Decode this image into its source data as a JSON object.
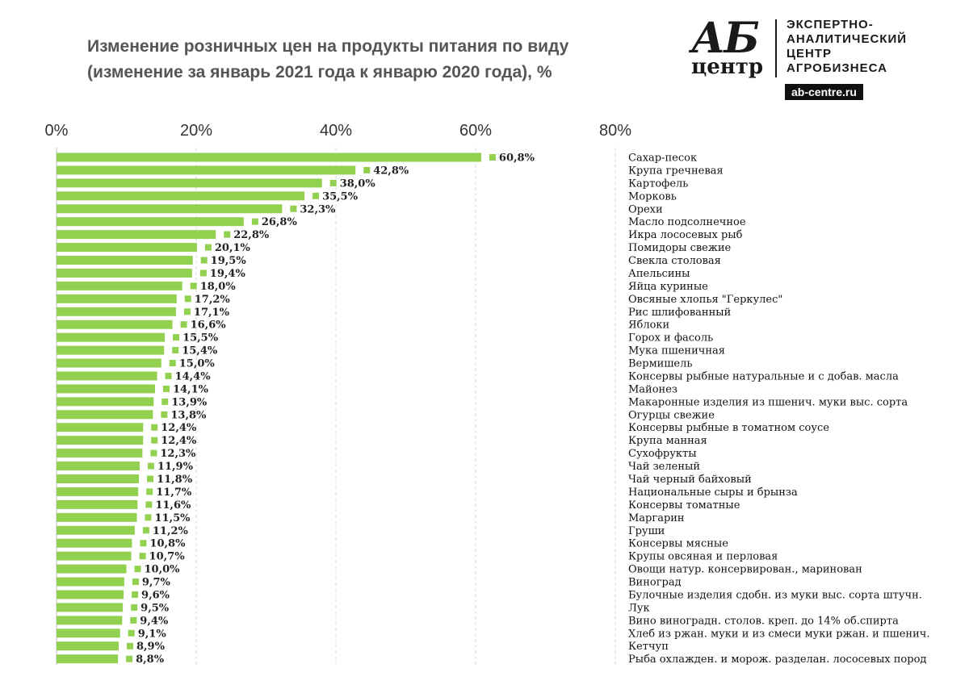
{
  "title": {
    "line1": "Изменение розничных цен на продукты питания по виду",
    "line2": "(изменение за январь 2021 года к январю 2020 года), %"
  },
  "logo": {
    "mark_ab": "АБ",
    "mark_centr": "центр",
    "text_lines": [
      "ЭКСПЕРТНО-",
      "АНАЛИТИЧЕСКИЙ",
      "ЦЕНТР",
      "АГРОБИЗНЕСА"
    ],
    "site": "ab-centre.ru"
  },
  "colors": {
    "bar": "#92d050",
    "grid": "#d9d9d9",
    "axis": "#bfbfbf"
  },
  "chart_data": {
    "type": "bar",
    "orientation": "horizontal",
    "title": "Изменение розничных цен на продукты питания по виду (изменение за январь 2021 года к январю 2020 года), %",
    "xlabel": "",
    "ylabel": "",
    "xlim": [
      0,
      80
    ],
    "xticks": [
      0,
      20,
      40,
      60,
      80
    ],
    "xtick_labels": [
      "0%",
      "20%",
      "40%",
      "60%",
      "80%"
    ],
    "grid": true,
    "legend": "none",
    "categories": [
      "Сахар-песок",
      "Крупа гречневая",
      "Картофель",
      "Морковь",
      "Орехи",
      "Масло подсолнечное",
      "Икра лососевых рыб",
      "Помидоры свежие",
      "Свекла столовая",
      "Апельсины",
      "Яйца куриные",
      "Овсяные хлопья \"Геркулес\"",
      "Рис шлифованный",
      "Яблоки",
      "Горох и фасоль",
      "Мука пшеничная",
      "Вермишель",
      "Консервы рыбные натуральные и с добав. масла",
      "Майонез",
      "Макаронные изделия из пшенич. муки выс. сорта",
      "Огурцы свежие",
      "Консервы рыбные в томатном соусе",
      "Крупа манная",
      "Сухофрукты",
      "Чай зеленый",
      "Чай черный байховый",
      "Национальные сыры и брынза",
      "Консервы томатные",
      "Маргарин",
      "Груши",
      "Консервы мясные",
      "Крупы овсяная и перловая",
      "Овощи натур. консервирован., маринован",
      "Виноград",
      "Булочные изделия сдобн. из муки выс. сорта штучн.",
      "Лук",
      "Вино виноградн. столов. креп. до 14% об.спирта",
      "Хлеб из ржан. муки и из смеси муки ржан. и пшенич.",
      "Кетчуп",
      "Рыба охлажден. и морож. разделан. лососевых пород"
    ],
    "values": [
      60.8,
      42.8,
      38.0,
      35.5,
      32.3,
      26.8,
      22.8,
      20.1,
      19.5,
      19.4,
      18.0,
      17.2,
      17.1,
      16.6,
      15.5,
      15.4,
      15.0,
      14.4,
      14.1,
      13.9,
      13.8,
      12.4,
      12.4,
      12.3,
      11.9,
      11.8,
      11.7,
      11.6,
      11.5,
      11.2,
      10.8,
      10.7,
      10.0,
      9.7,
      9.6,
      9.5,
      9.4,
      9.1,
      8.9,
      8.8
    ],
    "value_labels": [
      "60,8%",
      "42,8%",
      "38,0%",
      "35,5%",
      "32,3%",
      "26,8%",
      "22,8%",
      "20,1%",
      "19,5%",
      "19,4%",
      "18,0%",
      "17,2%",
      "17,1%",
      "16,6%",
      "15,5%",
      "15,4%",
      "15,0%",
      "14,4%",
      "14,1%",
      "13,9%",
      "13,8%",
      "12,4%",
      "12,4%",
      "12,3%",
      "11,9%",
      "11,8%",
      "11,7%",
      "11,6%",
      "11,5%",
      "11,2%",
      "10,8%",
      "10,7%",
      "10,0%",
      "9,7%",
      "9,6%",
      "9,5%",
      "9,4%",
      "9,1%",
      "8,9%",
      "8,8%"
    ]
  }
}
